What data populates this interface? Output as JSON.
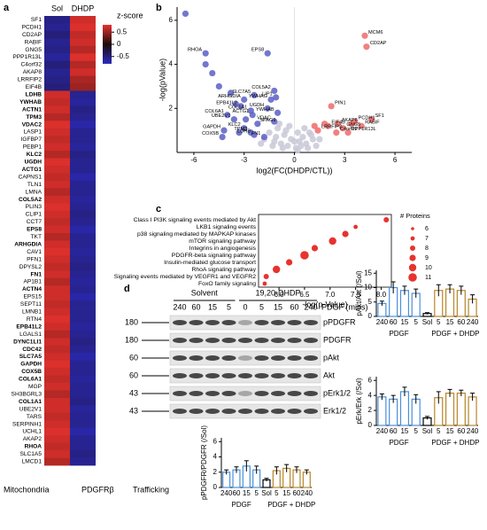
{
  "chart_data": [
    {
      "type": "heatmap",
      "panel": "a",
      "columns": [
        "Sol",
        "DHDP"
      ],
      "rows": [
        "SF1",
        "PCDH1",
        "CD2AP",
        "RABIF",
        "GNG5",
        "PPP1R13L",
        "C4orf32",
        "AKAP8",
        "LRRFIP2",
        "EIF4B",
        "LDHB",
        "YWHAB",
        "ACTN1",
        "TPM3",
        "VDAC2",
        "LASP1",
        "IGFBP7",
        "PEBP1",
        "KLC2",
        "UGDH",
        "ACTG1",
        "CAPNS1",
        "TLN1",
        "LMNA",
        "COL5A2",
        "PLIN3",
        "CLIP1",
        "CCT7",
        "EPS8",
        "TKT",
        "ARHGDIA",
        "CAV1",
        "PFN1",
        "DPYSL2",
        "FN1",
        "AP1B1",
        "ACTN4",
        "EPS15",
        "SEPT11",
        "LMNB1",
        "RTN4",
        "EPB41L2",
        "LGALS1",
        "DYNC1LI1",
        "CDC42",
        "SLC7A5",
        "GAPDH",
        "COX5B",
        "COL6A1",
        "MGP",
        "SH3BGRL3",
        "COL1A1",
        "UBE2V1",
        "TARS",
        "SERPINH1",
        "UCHL1",
        "AKAP2",
        "RHOA",
        "SLC1A5",
        "LMCD1"
      ],
      "values": [
        [
          -0.55,
          0.7
        ],
        [
          -0.6,
          0.75
        ],
        [
          -0.5,
          0.65
        ],
        [
          -0.6,
          0.7
        ],
        [
          -0.55,
          0.6
        ],
        [
          -0.65,
          0.75
        ],
        [
          -0.5,
          0.6
        ],
        [
          -0.6,
          0.7
        ],
        [
          -0.55,
          0.55
        ],
        [
          -0.5,
          0.5
        ],
        [
          0.7,
          -0.6
        ],
        [
          0.65,
          -0.65
        ],
        [
          0.7,
          -0.55
        ],
        [
          0.6,
          -0.6
        ],
        [
          0.75,
          -0.7
        ],
        [
          0.7,
          -0.6
        ],
        [
          0.65,
          -0.6
        ],
        [
          0.7,
          -0.65
        ],
        [
          0.6,
          -0.55
        ],
        [
          0.75,
          -0.6
        ],
        [
          0.7,
          -0.6
        ],
        [
          0.65,
          -0.7
        ],
        [
          0.7,
          -0.6
        ],
        [
          0.6,
          -0.6
        ],
        [
          0.7,
          -0.65
        ],
        [
          0.75,
          -0.6
        ],
        [
          0.7,
          -0.55
        ],
        [
          0.65,
          -0.6
        ],
        [
          0.7,
          -0.7
        ],
        [
          0.6,
          -0.6
        ],
        [
          0.7,
          -0.6
        ],
        [
          0.75,
          -0.65
        ],
        [
          0.7,
          -0.6
        ],
        [
          0.65,
          -0.55
        ],
        [
          0.7,
          -0.6
        ],
        [
          0.6,
          -0.65
        ],
        [
          0.7,
          -0.6
        ],
        [
          0.7,
          -0.7
        ],
        [
          0.65,
          -0.6
        ],
        [
          0.7,
          -0.6
        ],
        [
          0.75,
          -0.6
        ],
        [
          0.7,
          -0.65
        ],
        [
          0.6,
          -0.6
        ],
        [
          0.7,
          -0.55
        ],
        [
          0.65,
          -0.6
        ],
        [
          0.7,
          -0.7
        ],
        [
          0.75,
          -0.6
        ],
        [
          0.7,
          -0.6
        ],
        [
          0.65,
          -0.65
        ],
        [
          0.7,
          -0.6
        ],
        [
          0.6,
          -0.6
        ],
        [
          0.7,
          -0.55
        ],
        [
          0.7,
          -0.65
        ],
        [
          0.65,
          -0.6
        ],
        [
          0.7,
          -0.6
        ],
        [
          0.75,
          -0.7
        ],
        [
          0.7,
          -0.6
        ],
        [
          0.65,
          -0.6
        ],
        [
          0.7,
          -0.55
        ],
        [
          0.6,
          -0.6
        ]
      ],
      "label_colors": [
        "#000000",
        "#000000",
        "#000000",
        "#000000",
        "#000000",
        "#000000",
        "#000000",
        "#000000",
        "#000000",
        "#000000",
        "#e8322e",
        "#2b4fc4",
        "#2b4fc4",
        "#1e9a3a",
        "#e8322e",
        "#000000",
        "#000000",
        "#000000",
        "#1e9a3a",
        "#e8322e",
        "#1e9a3a",
        "#000000",
        "#000000",
        "#000000",
        "#1e9a3a",
        "#000000",
        "#000000",
        "#000000",
        "#2b4fc4",
        "#000000",
        "#2b4fc4",
        "#000000",
        "#000000",
        "#000000",
        "#1e9a3a",
        "#000000",
        "#2b4fc4",
        "#000000",
        "#000000",
        "#000000",
        "#000000",
        "#e8322e",
        "#000000",
        "#1e9a3a",
        "#2b4fc4",
        "#e8322e",
        "#e8322e",
        "#e8322e",
        "#1e9a3a",
        "#000000",
        "#000000",
        "#1e9a3a",
        "#000000",
        "#000000",
        "#000000",
        "#000000",
        "#000000",
        "#2b4fc4",
        "#000000",
        "#000000"
      ],
      "colorbar_title": "z-score",
      "clim": [
        -0.8,
        0.8
      ],
      "colorbar_ticks": [
        0.5,
        0,
        -0.5
      ],
      "colormap": [
        "#2b2bbd",
        "#1a0a0a",
        "#e8322e"
      ],
      "legend": [
        {
          "name": "Mitochondria",
          "color": "#e8322e"
        },
        {
          "name": "PDGFRβ",
          "color": "#2b4fc4"
        },
        {
          "name": "Trafficking",
          "color": "#1e9a3a"
        }
      ]
    },
    {
      "type": "scatter",
      "panel": "b",
      "x_label": "log2(FC(DHDP/CTL))",
      "y_label": "-log(pValue)",
      "xlim": [
        -7,
        7
      ],
      "ylim": [
        0,
        6.6
      ],
      "xticks": [
        -6,
        -3,
        0,
        3,
        6
      ],
      "yticks": [
        2,
        4,
        6
      ],
      "series": [
        {
          "color": "#c8c8d8",
          "x": [
            -1.8,
            -1.5,
            -1.2,
            -1.0,
            -0.8,
            -0.6,
            -0.4,
            -0.2,
            0.1,
            0.3,
            0.5,
            0.7,
            0.9,
            1.1,
            1.3,
            -0.9,
            -0.5,
            0.2,
            0.6,
            1.0,
            -1.3,
            -0.7,
            0.0,
            0.4,
            0.8,
            -2.0,
            1.5,
            -0.3,
            0.2,
            -1.1
          ],
          "y": [
            0.6,
            0.9,
            0.5,
            1.1,
            0.4,
            0.8,
            0.3,
            0.6,
            0.2,
            0.5,
            0.7,
            0.4,
            0.9,
            0.6,
            0.3,
            1.3,
            1.0,
            0.9,
            1.1,
            0.8,
            0.3,
            0.2,
            0.5,
            0.3,
            0.2,
            0.4,
            0.6,
            1.2,
            0.1,
            0.7
          ],
          "labels": [
            null,
            null,
            null,
            null,
            null,
            null,
            null,
            null,
            null,
            null,
            null,
            null,
            null,
            null,
            null,
            "SPAG9",
            null,
            null,
            null,
            null,
            null,
            null,
            null,
            null,
            null,
            null,
            null,
            null,
            null,
            null
          ]
        },
        {
          "color": "#5a5fc4",
          "x": [
            -5.3,
            -1.6,
            -6.5,
            -5.3,
            -4.9,
            -1.2,
            -2.4,
            -3.0,
            -1.4,
            -1.1,
            -3.2,
            -2.6,
            -1.6,
            -2.5,
            -1.0,
            -4.0,
            -3.6,
            -1.2,
            -4.2,
            -3.0,
            -2.6,
            -4.3,
            -2.4,
            -1.8,
            -4.5,
            -3.8,
            -3.5,
            -2.9,
            -2.2,
            -3.3
          ],
          "y": [
            4.5,
            4.5,
            6.3,
            4.0,
            3.6,
            2.8,
            2.6,
            2.4,
            2.4,
            2.5,
            2.1,
            1.9,
            2.0,
            1.7,
            1.8,
            1.7,
            1.5,
            1.4,
            1.0,
            1.1,
            0.9,
            0.7,
            0.8,
            0.7,
            3.0,
            2.7,
            2.2,
            1.5,
            1.3,
            0.9
          ],
          "labels": [
            "RHOA",
            "EPS8",
            null,
            null,
            null,
            "COL5A2",
            "SLC7A5",
            "ARHGDIA",
            "YWHAG",
            "LIP1",
            "EPB41L2",
            "COL1A1",
            "UGDH",
            "ACTG1",
            "YWHAB",
            "COL6A1",
            "UBE2V1",
            "VDAC",
            "GAPDH",
            "KLC2",
            "TPM3",
            "COX5B",
            "LDHB",
            "FN1",
            null,
            null,
            null,
            null,
            null,
            null
          ]
        },
        {
          "color": "#f06a6a",
          "x": [
            4.2,
            4.3,
            2.2,
            4.6,
            3.6,
            2.0,
            2.6,
            2.9,
            4.0,
            1.4,
            2.5,
            3.2,
            1.8,
            3.4,
            1.2
          ],
          "y": [
            5.3,
            4.8,
            2.1,
            1.5,
            1.4,
            1.2,
            1.3,
            1.1,
            1.2,
            1.0,
            0.9,
            0.9,
            1.3,
            1.3,
            1.2
          ],
          "labels": [
            "MCM6",
            "CD2AP",
            "PIN1",
            "SF1",
            "PCDH1",
            "EIF4B",
            "AKAP8",
            "GNG5",
            "RABIF",
            "LRRFIP2",
            "C4orf32",
            "PPP1R13L",
            null,
            null,
            null
          ]
        }
      ]
    },
    {
      "type": "dot",
      "panel": "c",
      "categories": [
        "Class I PI3K signaling events mediated by Akt",
        "LKB1 signaling events",
        "p38 signaling mediated by MAPKAP kinases",
        "mTOR signaling pathway",
        "Integrins in angiogenesis",
        "PDGFR-beta signaling pathway",
        "Insulin-mediated glucose transport",
        "RhoA signaling pathway",
        "Signaling events mediated by VEGFR1 and VEGFR2",
        "FoxO family signaling"
      ],
      "values": [
        8.1,
        7.5,
        7.3,
        7.05,
        6.7,
        6.5,
        6.2,
        5.95,
        5.75,
        5.72
      ],
      "sizes": [
        8,
        7,
        9,
        10,
        9,
        11,
        9,
        10,
        8,
        7
      ],
      "color": "#e8322e",
      "x_label": "-log(p-Value)",
      "xlim": [
        5.6,
        8.2
      ],
      "xticks": [
        {
          "value": 6,
          "label": "6.0"
        },
        {
          "value": 6.5,
          "label": "6.5"
        },
        {
          "value": 7,
          "label": "7.0"
        },
        {
          "value": 7.5,
          "label": "7.5"
        },
        {
          "value": 8,
          "label": "8.0"
        }
      ],
      "size_legend_title": "# Proteins",
      "size_legend": [
        6,
        7,
        8,
        9,
        10,
        11
      ]
    },
    {
      "type": "blot",
      "panel": "d",
      "groups": [
        "Solvent",
        "19,20-DHDP"
      ],
      "lanes": [
        "240",
        "60",
        "15",
        "5",
        "0",
        "5",
        "15",
        "60",
        "240"
      ],
      "lane_title": "PDGF (mins)",
      "rows": [
        {
          "name": "pPDGFR",
          "mw": 180
        },
        {
          "name": "PDGFR",
          "mw": 180
        },
        {
          "name": "pAkt",
          "mw": 60
        },
        {
          "name": "Akt",
          "mw": 60
        },
        {
          "name": "pErk1/2",
          "mw": 43
        },
        {
          "name": "Erk1/2",
          "mw": 43
        }
      ]
    },
    {
      "type": "bar",
      "y_label": "pAkt/Akt (/Sol)",
      "categories": [
        "240",
        "60",
        "15",
        "5",
        "Sol",
        "5",
        "15",
        "60",
        "240"
      ],
      "values": [
        4.5,
        10,
        9,
        8,
        1,
        9,
        9.5,
        9,
        6
      ],
      "errors": [
        0.8,
        2,
        1.5,
        1.5,
        0.3,
        2,
        1.5,
        1.5,
        1.5
      ],
      "colors": [
        "#4a90d9",
        "#4a90d9",
        "#4a90d9",
        "#4a90d9",
        "#000000",
        "#b8862b",
        "#b8862b",
        "#b8862b",
        "#b8862b"
      ],
      "groups": [
        "PDGF",
        "PDGF + DHDP"
      ],
      "ylim": [
        0,
        16
      ],
      "yticks": [
        0,
        5,
        10,
        15
      ]
    },
    {
      "type": "bar",
      "y_label": "pErk/Erk (/Sol)",
      "categories": [
        "240",
        "60",
        "15",
        "5",
        "Sol",
        "5",
        "15",
        "60",
        "240"
      ],
      "values": [
        3.8,
        3.5,
        4.5,
        3.5,
        1,
        3.7,
        4.3,
        4.3,
        3.8
      ],
      "errors": [
        0.4,
        0.5,
        0.6,
        0.6,
        0.2,
        0.8,
        0.5,
        0.4,
        0.5
      ],
      "colors": [
        "#4a90d9",
        "#4a90d9",
        "#4a90d9",
        "#4a90d9",
        "#000000",
        "#b8862b",
        "#b8862b",
        "#b8862b",
        "#b8862b"
      ],
      "groups": [
        "PDGF",
        "PDGF + DHDP"
      ],
      "ylim": [
        0,
        6.5
      ],
      "yticks": [
        0,
        2,
        4,
        6
      ]
    },
    {
      "type": "bar",
      "y_label": "pPDGFR/PDGFR (/Sol)",
      "categories": [
        "240",
        "60",
        "15",
        "5",
        "Sol",
        "5",
        "15",
        "60",
        "240"
      ],
      "values": [
        2,
        2.3,
        2.8,
        2.3,
        1,
        2.2,
        2.5,
        2.3,
        2
      ],
      "errors": [
        0.3,
        0.4,
        0.7,
        0.5,
        0.2,
        0.5,
        0.5,
        0.4,
        0.3
      ],
      "colors": [
        "#4a90d9",
        "#4a90d9",
        "#4a90d9",
        "#4a90d9",
        "#000000",
        "#b8862b",
        "#b8862b",
        "#b8862b",
        "#b8862b"
      ],
      "groups": [
        "PDGF",
        "PDGF + DHDP"
      ],
      "ylim": [
        0,
        6.5
      ],
      "yticks": [
        0,
        2,
        4,
        6
      ]
    }
  ]
}
